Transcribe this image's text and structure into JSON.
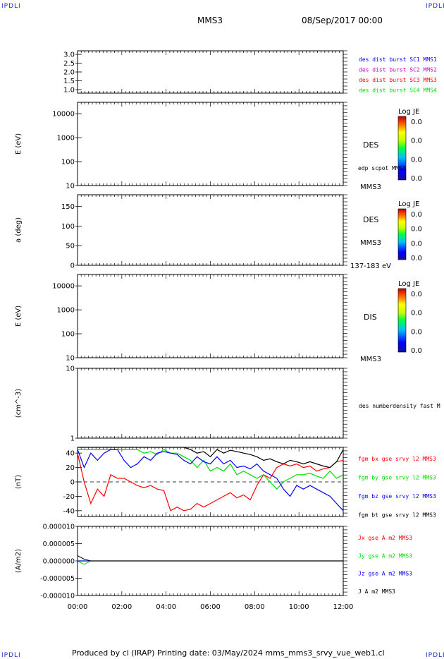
{
  "header": {
    "left_corner": "IPDLI",
    "right_corner": "IPDLI",
    "spacecraft": "MMS3",
    "date": "08/Sep/2017 00:00",
    "bottom_left_corner": "IPDLI",
    "bottom_right_corner": "IPDLI"
  },
  "footer": {
    "text": "Produced by cl (IRAP)   Printing date: 03/May/2024   mms_mms3_srvy_vue_web1.cl"
  },
  "colors": {
    "blue": "#0000ff",
    "magenta": "#d000d0",
    "red": "#ff0000",
    "green": "#00dd00",
    "black": "#000000"
  },
  "chart_data": [
    {
      "type": "line",
      "panel": "burst",
      "ylim": [
        0.8,
        3.2
      ],
      "yticks": [
        "3.0",
        "2.5",
        "2.0",
        "1.5",
        "1.0"
      ],
      "ytick_values": [
        3.0,
        2.5,
        2.0,
        1.5,
        1.0
      ],
      "ylabel": "",
      "legend": [
        {
          "text": "des dist burst SC1 MMS1",
          "color": "blue"
        },
        {
          "text": "des dist burst SC2 MMS2",
          "color": "magenta"
        },
        {
          "text": "des dist burst SC3 MMS3",
          "color": "red"
        },
        {
          "text": "des dist burst SC4 MMS4",
          "color": "green"
        }
      ],
      "series": []
    },
    {
      "type": "heatmap",
      "panel": "des_energy",
      "log_y": true,
      "ylim": [
        10,
        30000
      ],
      "yticks": [
        "10000",
        "1000",
        "100",
        "10"
      ],
      "ytick_values": [
        10000,
        1000,
        100,
        10
      ],
      "ylabel": "E (eV)",
      "labels": [
        "DES",
        "edp scpot MMS3",
        "MMS3"
      ],
      "colorbar": {
        "title": "Log JE",
        "ticks": [
          "0.0",
          "0.0",
          "0.0",
          "0.0"
        ]
      }
    },
    {
      "type": "heatmap",
      "panel": "des_pitch",
      "ylim": [
        0,
        180
      ],
      "yticks": [
        "150",
        "100",
        "50",
        "0"
      ],
      "ytick_values": [
        150,
        100,
        50,
        0
      ],
      "ylabel": "a (deg)",
      "labels": [
        "DES",
        "MMS3",
        "137-183 eV"
      ],
      "colorbar": {
        "title": "Log JE",
        "ticks": [
          "0.0",
          "0.0",
          "0.0",
          "0.0"
        ]
      }
    },
    {
      "type": "heatmap",
      "panel": "dis_energy",
      "log_y": true,
      "ylim": [
        10,
        30000
      ],
      "yticks": [
        "10000",
        "1000",
        "100",
        "10"
      ],
      "ytick_values": [
        10000,
        1000,
        100,
        10
      ],
      "ylabel": "E (eV)",
      "labels": [
        "DIS",
        "MMS3"
      ],
      "colorbar": {
        "title": "Log JE",
        "ticks": [
          "0.0",
          "0.0",
          "0.0",
          "0.0"
        ]
      }
    },
    {
      "type": "line",
      "panel": "density",
      "log_y": true,
      "ylim": [
        1,
        10
      ],
      "yticks": [
        "10",
        "1"
      ],
      "ytick_values": [
        10,
        1
      ],
      "ylabel": "(cm^-3)",
      "labels": [
        "des numberdensity fast M"
      ],
      "series": []
    },
    {
      "type": "line",
      "panel": "magnetic_field",
      "ylim": [
        -48,
        48
      ],
      "yticks": [
        "40",
        "20",
        "0",
        "-20",
        "-40"
      ],
      "ytick_values": [
        40,
        20,
        0,
        -20,
        -40
      ],
      "ylabel": "(nT)",
      "legend": [
        {
          "text": "fgm bx gse srvy l2 MMS3",
          "color": "red"
        },
        {
          "text": "fgm by gse srvy l2 MMS3",
          "color": "green"
        },
        {
          "text": "fgm bz gse srvy l2 MMS3",
          "color": "blue"
        },
        {
          "text": "fgm bt gse srvy l2 MMS3",
          "color": "black"
        }
      ],
      "x_hours": [
        0.0,
        0.3,
        0.6,
        0.9,
        1.2,
        1.5,
        1.8,
        2.1,
        2.4,
        2.7,
        3.0,
        3.3,
        3.6,
        3.9,
        4.2,
        4.5,
        4.8,
        5.1,
        5.4,
        5.7,
        6.0,
        6.3,
        6.6,
        6.9,
        7.2,
        7.5,
        7.8,
        8.1,
        8.4,
        8.7,
        9.0,
        9.3,
        9.6,
        9.9,
        10.2,
        10.5,
        10.8,
        11.1,
        11.4,
        11.7,
        12.0
      ],
      "series": [
        {
          "name": "fgm bx gse srvy l2 MMS3",
          "color": "red",
          "values": [
            40,
            0,
            -30,
            -10,
            -20,
            10,
            5,
            5,
            0,
            -5,
            -8,
            -5,
            -10,
            -12,
            -40,
            -35,
            -40,
            -38,
            -30,
            -35,
            -30,
            -25,
            -20,
            -15,
            -22,
            -18,
            -25,
            -5,
            10,
            5,
            20,
            25,
            22,
            25,
            20,
            22,
            15,
            18,
            20,
            28,
            30
          ]
        },
        {
          "name": "fgm by gse srvy l2 MMS3",
          "color": "green",
          "values": [
            45,
            45,
            45,
            45,
            45,
            45,
            45,
            45,
            45,
            45,
            40,
            42,
            38,
            45,
            40,
            40,
            35,
            30,
            20,
            30,
            15,
            20,
            15,
            25,
            10,
            15,
            10,
            5,
            10,
            0,
            -10,
            0,
            5,
            10,
            10,
            12,
            8,
            5,
            15,
            5,
            10
          ]
        },
        {
          "name": "fgm bz gse srvy l2 MMS3",
          "color": "blue",
          "values": [
            45,
            20,
            40,
            30,
            40,
            45,
            45,
            30,
            20,
            25,
            35,
            30,
            40,
            42,
            40,
            38,
            30,
            25,
            35,
            28,
            25,
            35,
            25,
            30,
            20,
            22,
            18,
            25,
            15,
            10,
            5,
            -10,
            -20,
            -5,
            -10,
            -5,
            -10,
            -15,
            -20,
            -30,
            -40
          ]
        },
        {
          "name": "fgm bt gse srvy l2 MMS3",
          "color": "black",
          "values": [
            48,
            48,
            48,
            48,
            48,
            48,
            48,
            48,
            48,
            48,
            48,
            48,
            48,
            48,
            48,
            48,
            48,
            45,
            40,
            42,
            35,
            45,
            40,
            44,
            42,
            40,
            38,
            35,
            30,
            32,
            28,
            25,
            30,
            28,
            25,
            28,
            25,
            22,
            20,
            28,
            45
          ]
        }
      ]
    },
    {
      "type": "line",
      "panel": "current_density",
      "ylim": [
        -1e-05,
        1e-05
      ],
      "yticks": [
        "0.000010",
        "0.000005",
        "0.000000",
        "-0.000005",
        "-0.000010"
      ],
      "ytick_values": [
        1e-05,
        5e-06,
        0.0,
        -5e-06,
        -1e-05
      ],
      "ylabel": "(A/m2)",
      "legend": [
        {
          "text": "Jx gse A m2 MMS3",
          "color": "red"
        },
        {
          "text": "Jy gse A m2 MMS3",
          "color": "green"
        },
        {
          "text": "Jz gse A m2 MMS3",
          "color": "blue"
        },
        {
          "text": "J A m2 MMS3",
          "color": "black"
        }
      ],
      "xlabel_ticks": [
        "00:00",
        "02:00",
        "04:00",
        "06:00",
        "08:00",
        "10:00",
        "12:00"
      ],
      "xlim_hours": [
        0,
        12
      ],
      "series": [
        {
          "name": "Jx gse A m2 MMS3",
          "color": "red",
          "values": [
            0,
            0,
            0,
            0,
            0,
            0,
            0,
            0,
            0,
            0,
            0,
            0,
            0,
            0,
            0,
            0,
            0,
            0,
            0,
            0,
            0,
            0,
            0,
            0,
            0,
            0,
            0,
            0,
            0,
            0,
            0,
            0,
            0,
            0,
            0,
            0,
            0,
            0,
            0,
            0,
            0
          ]
        },
        {
          "name": "Jy gse A m2 MMS3",
          "color": "green",
          "values": [
            0,
            -1e-06,
            0,
            0,
            0,
            0,
            0,
            0,
            0,
            0,
            0,
            0,
            0,
            0,
            0,
            0,
            0,
            0,
            0,
            0,
            0,
            0,
            0,
            0,
            0,
            0,
            0,
            0,
            0,
            0,
            0,
            0,
            0,
            0,
            0,
            0,
            0,
            0,
            0,
            0,
            0
          ]
        },
        {
          "name": "Jz gse A m2 MMS3",
          "color": "blue",
          "values": [
            0,
            0,
            0,
            0,
            0,
            0,
            0,
            0,
            0,
            0,
            0,
            0,
            0,
            0,
            0,
            0,
            0,
            0,
            0,
            0,
            0,
            0,
            0,
            0,
            0,
            0,
            0,
            0,
            0,
            0,
            0,
            0,
            0,
            0,
            0,
            0,
            0,
            0,
            0,
            0,
            0
          ]
        },
        {
          "name": "J A m2 MMS3",
          "color": "black",
          "values": [
            1.5e-06,
            5e-07,
            0,
            0,
            0,
            0,
            0,
            0,
            0,
            0,
            0,
            0,
            0,
            0,
            0,
            0,
            0,
            0,
            0,
            0,
            0,
            0,
            0,
            0,
            0,
            0,
            0,
            0,
            0,
            0,
            0,
            0,
            0,
            0,
            0,
            0,
            0,
            0,
            0,
            0,
            0
          ]
        }
      ]
    }
  ]
}
